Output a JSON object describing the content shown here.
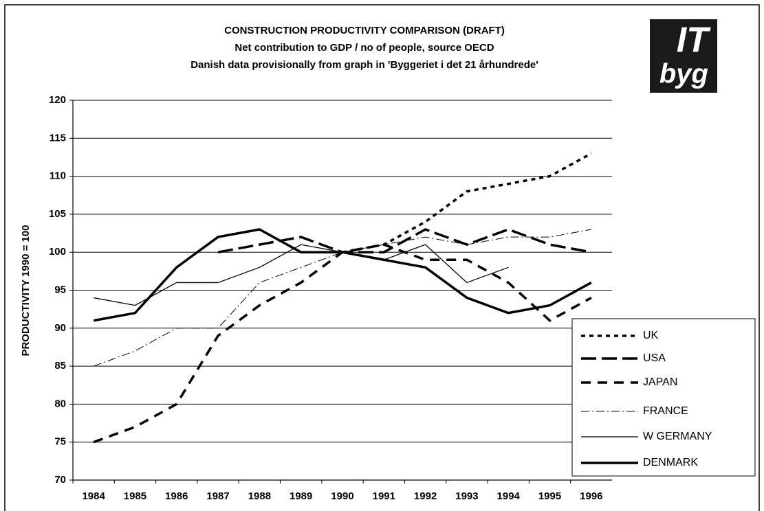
{
  "chart_data": {
    "type": "line",
    "title": "CONSTRUCTION PRODUCTIVITY COMPARISON (DRAFT)",
    "subtitle": [
      "Net contribution to GDP / no of people, source OECD",
      "Danish data provisionally from graph in 'Byggeriet i det 21 århundrede'"
    ],
    "logo": [
      "IT",
      "byg"
    ],
    "y_label": "PRODUCTIVITY 1990 = 100",
    "categories": [
      "1984",
      "1985",
      "1986",
      "1987",
      "1988",
      "1989",
      "1990",
      "1991",
      "1992",
      "1993",
      "1994",
      "1995",
      "1996"
    ],
    "ylim": [
      70,
      120
    ],
    "yticks": [
      70,
      75,
      80,
      85,
      90,
      95,
      100,
      105,
      110,
      115,
      120
    ],
    "grid": true,
    "series": [
      {
        "name": "UK",
        "color": "#000000",
        "values": [
          null,
          null,
          null,
          null,
          null,
          null,
          100,
          101,
          104,
          108,
          109,
          110,
          113
        ]
      },
      {
        "name": "USA",
        "color": "#000000",
        "values": [
          null,
          null,
          null,
          100,
          101,
          102,
          100,
          100,
          103,
          101,
          103,
          101,
          100
        ]
      },
      {
        "name": "JAPAN",
        "color": "#000000",
        "values": [
          75,
          77,
          80,
          89,
          93,
          96,
          100,
          101,
          99,
          99,
          96,
          91,
          94
        ]
      },
      {
        "name": "FRANCE",
        "color": "#000000",
        "values": [
          85,
          87,
          90,
          90,
          96,
          98,
          100,
          101,
          102,
          101,
          102,
          102,
          103
        ]
      },
      {
        "name": "W GERMANY",
        "color": "#000000",
        "values": [
          94,
          93,
          96,
          96,
          98,
          101,
          100,
          99,
          101,
          96,
          98,
          null,
          null
        ]
      },
      {
        "name": "DENMARK",
        "color": "#000000",
        "values": [
          91,
          92,
          98,
          102,
          103,
          100,
          100,
          99,
          98,
          94,
          92,
          93,
          96
        ]
      }
    ]
  }
}
